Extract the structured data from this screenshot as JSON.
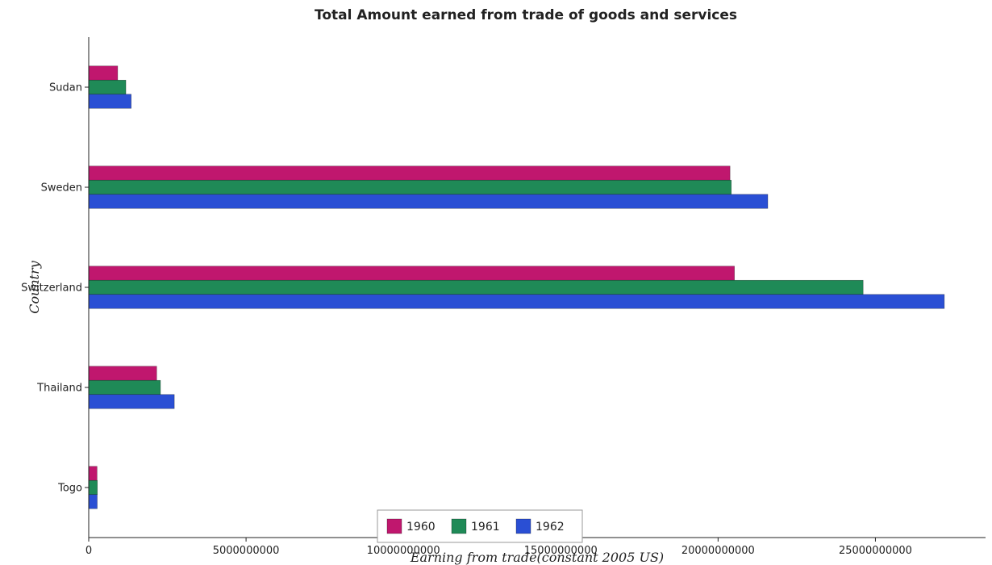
{
  "chart_data": {
    "type": "bar",
    "orientation": "horizontal",
    "title": "Total Amount earned from trade of goods and services",
    "xlabel": "Earning from trade(constant 2005 US)",
    "ylabel": "Country",
    "categories": [
      "Sudan",
      "Sweden",
      "Switzerland",
      "Thailand",
      "Togo"
    ],
    "series": [
      {
        "name": "1960",
        "color": "#c0176e",
        "values": [
          920000000,
          20380000000,
          20520000000,
          2160000000,
          265000000
        ]
      },
      {
        "name": "1961",
        "color": "#1f8a57",
        "values": [
          1180000000,
          20420000000,
          24610000000,
          2280000000,
          275000000
        ]
      },
      {
        "name": "1962",
        "color": "#2a4fd4",
        "values": [
          1350000000,
          21580000000,
          27190000000,
          2720000000,
          270000000
        ]
      }
    ],
    "xlim": [
      0,
      28500000000
    ],
    "xticks": [
      0,
      5000000000,
      10000000000,
      15000000000,
      20000000000,
      25000000000
    ],
    "xtick_labels": [
      "0",
      "5000000000",
      "10000000000",
      "15000000000",
      "20000000000",
      "25000000000"
    ],
    "grid": false,
    "legend_position": "bottom"
  }
}
